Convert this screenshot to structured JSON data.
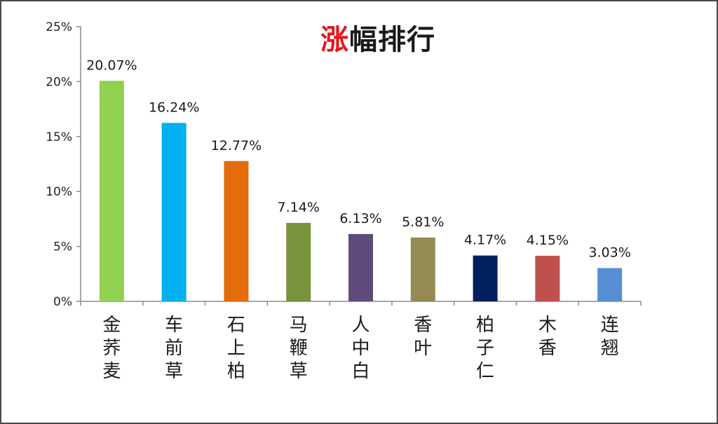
{
  "chart_data": {
    "type": "bar",
    "title_accent": "涨",
    "title_rest": "幅排行",
    "categories": [
      "金荞麦",
      "车前草",
      "石上柏",
      "马鞭草",
      "人中白",
      "香叶",
      "柏子仁",
      "木香",
      "连翘"
    ],
    "values": [
      20.07,
      16.24,
      12.77,
      7.14,
      6.13,
      5.81,
      4.17,
      4.15,
      3.03
    ],
    "data_labels": [
      "20.07%",
      "16.24%",
      "12.77%",
      "7.14%",
      "6.13%",
      "5.81%",
      "4.17%",
      "4.15%",
      "3.03%"
    ],
    "ylim": [
      0,
      25
    ],
    "yticks": [
      0,
      5,
      10,
      15,
      20,
      25
    ],
    "ytick_labels": [
      "0%",
      "5%",
      "10%",
      "15%",
      "20%",
      "25%"
    ],
    "grid": false,
    "colors": {
      "bars": [
        "#92d050",
        "#00b0f0",
        "#e46c0a",
        "#77933c",
        "#604a7b",
        "#948a54",
        "#002060",
        "#c0504d",
        "#558ed5"
      ],
      "title_accent": "#e8141c",
      "title": "#1a1a1a",
      "axis": "#8c8c8c"
    }
  }
}
